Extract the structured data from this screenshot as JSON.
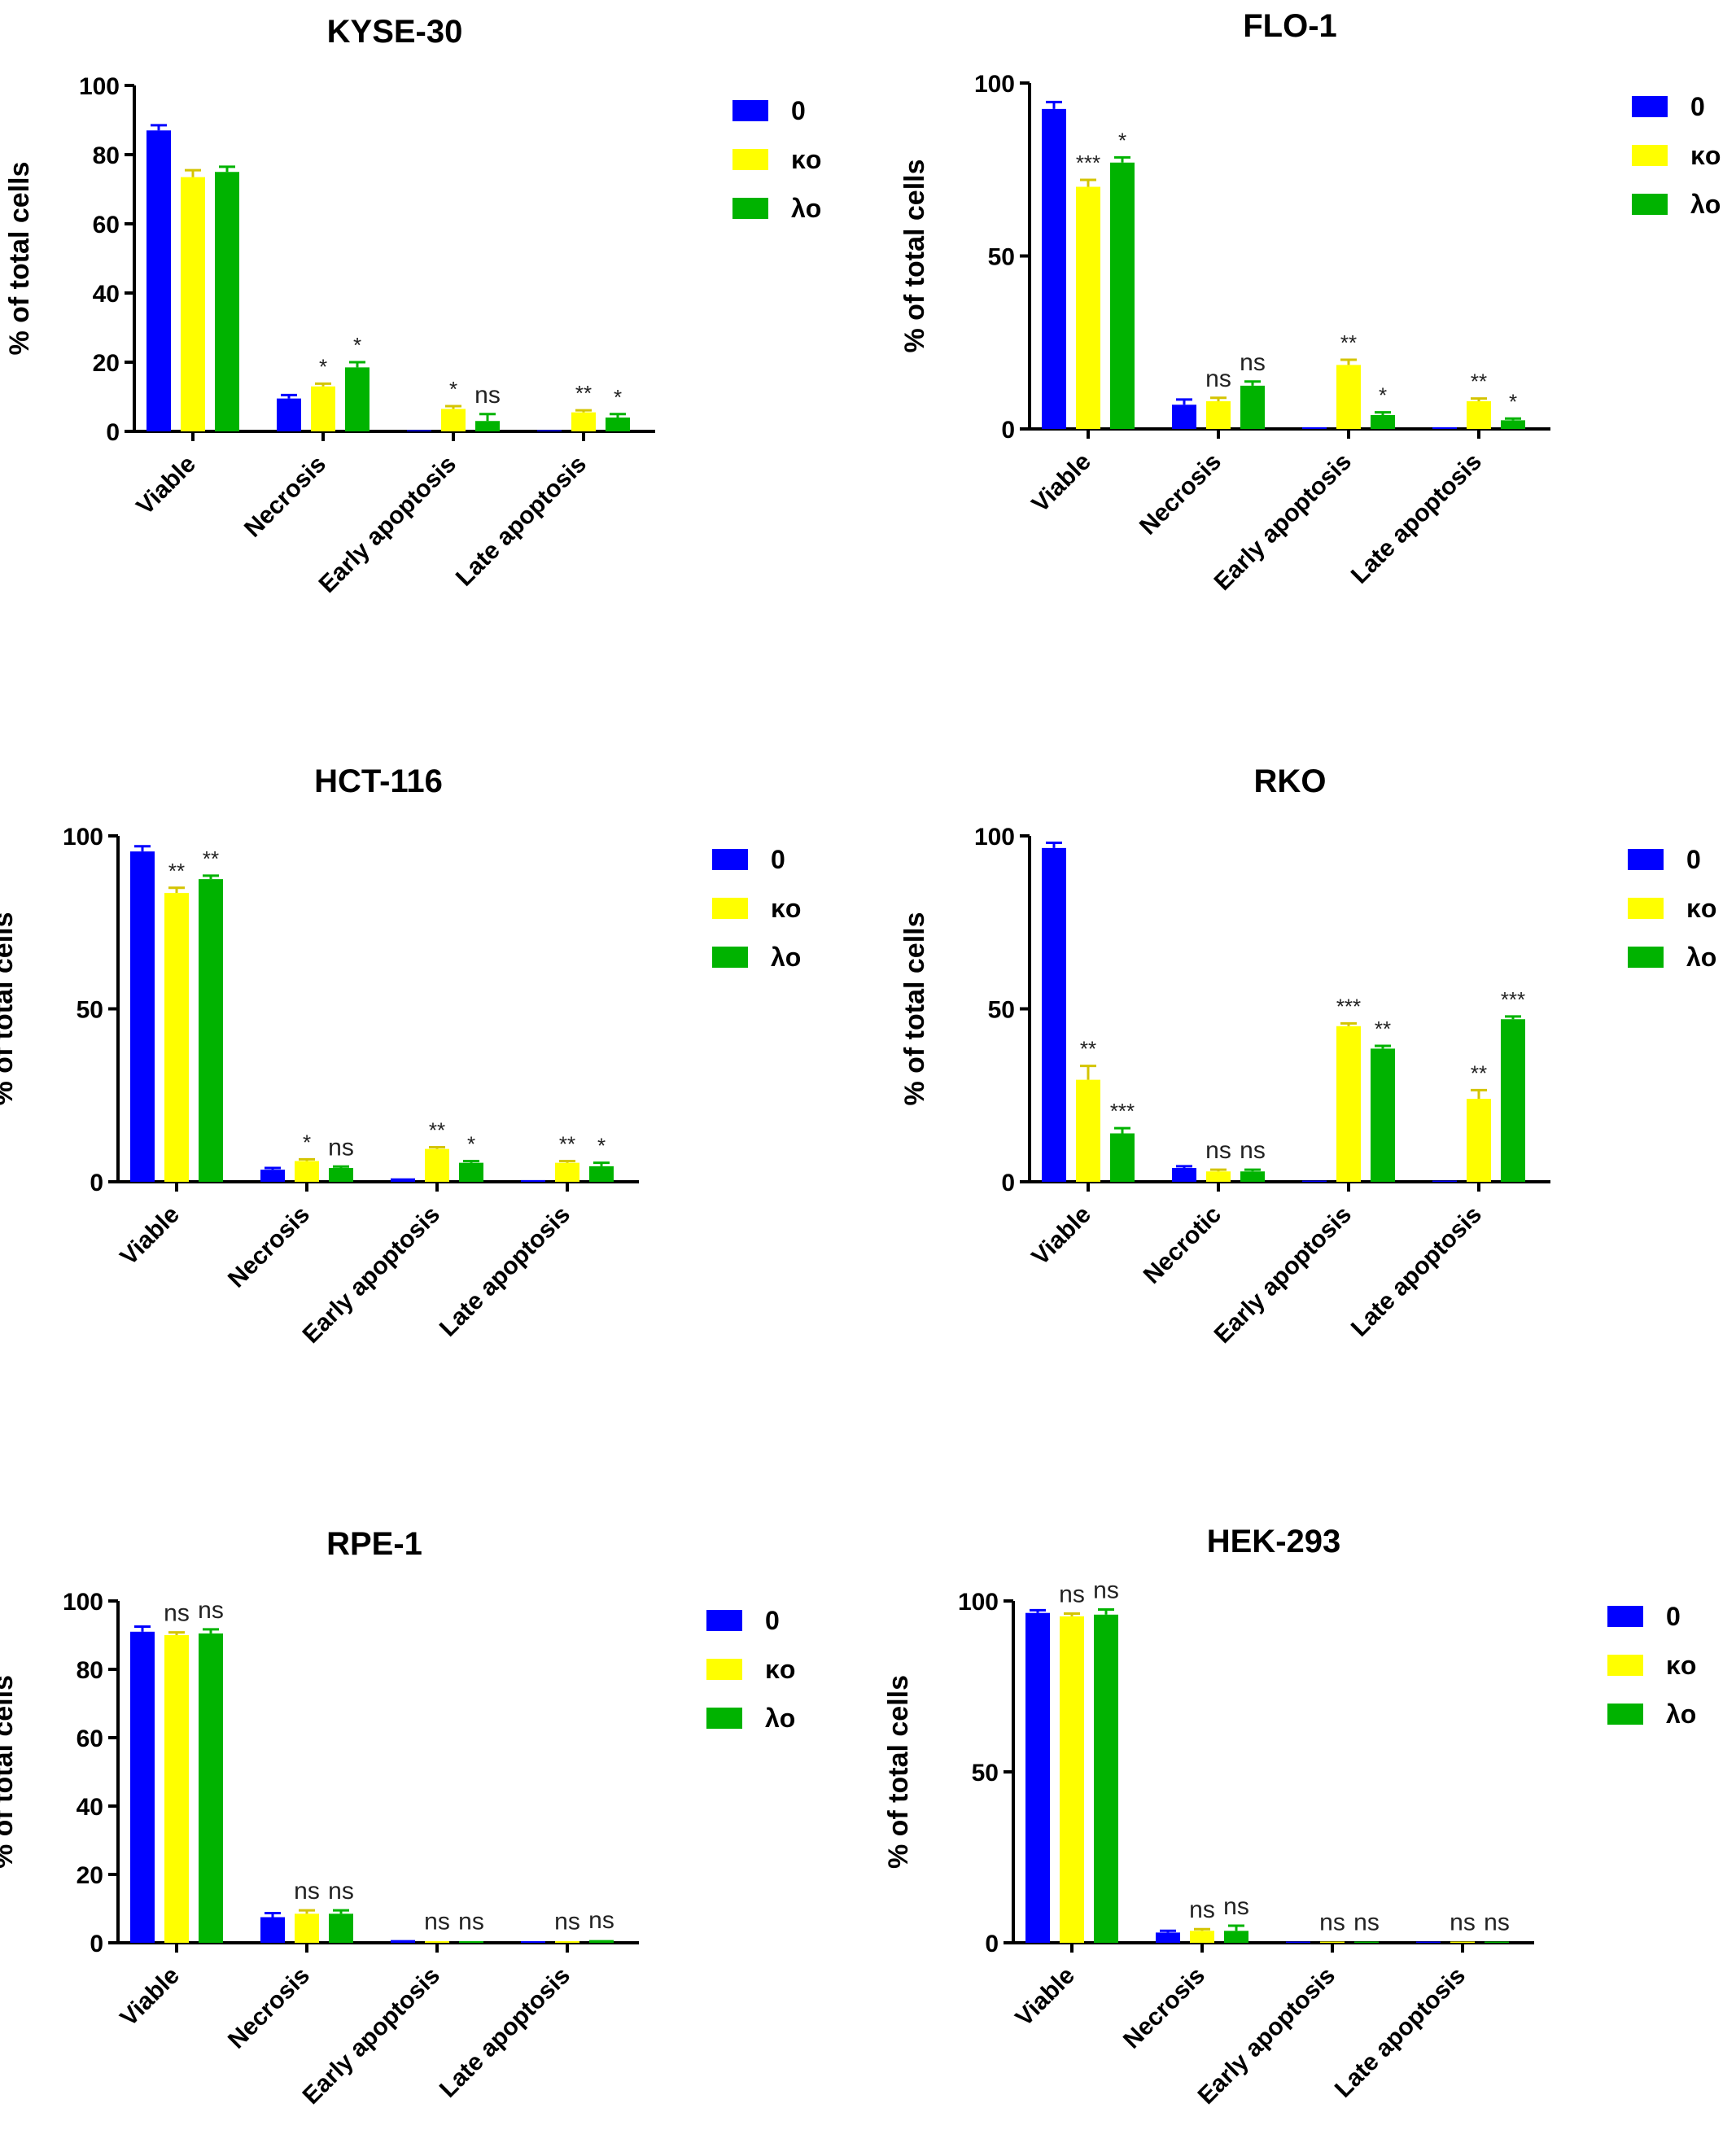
{
  "figure": {
    "legend_default": [
      {
        "label": "0",
        "color": "#0000ff"
      },
      {
        "label": "κo",
        "color": "#ffff00"
      },
      {
        "label": "λo",
        "color": "#00b300"
      }
    ]
  },
  "chart_data": [
    {
      "type": "bar",
      "title": "KYSE-30",
      "ylabel": "% of total cells",
      "xlabel": "",
      "ylim": [
        0,
        100
      ],
      "yticks": [
        0,
        20,
        40,
        60,
        80,
        100
      ],
      "categories": [
        "Viable",
        "Necrosis",
        "Early apoptosis",
        "Late apoptosis"
      ],
      "series": [
        {
          "name": "0",
          "color": "#0000ff",
          "values": [
            87,
            9.5,
            0.3,
            0.3
          ],
          "errors": [
            1.5,
            1,
            0.1,
            0.1
          ]
        },
        {
          "name": "κo",
          "color": "#ffff00",
          "values": [
            73.5,
            13,
            6.5,
            5.5
          ],
          "errors": [
            2,
            0.8,
            0.8,
            0.6
          ]
        },
        {
          "name": "λo",
          "color": "#00b300",
          "values": [
            75,
            18.5,
            3,
            4
          ],
          "errors": [
            1.5,
            1.5,
            2,
            1
          ]
        }
      ],
      "significance": [
        [
          "",
          "",
          ""
        ],
        [
          "",
          "*",
          "*"
        ],
        [
          "",
          "*",
          "ns"
        ],
        [
          "",
          "**",
          "*"
        ]
      ],
      "grid": false,
      "legend": "right"
    },
    {
      "type": "bar",
      "title": "FLO-1",
      "ylabel": "% of total cells",
      "xlabel": "",
      "ylim": [
        0,
        100
      ],
      "yticks": [
        0,
        50,
        100
      ],
      "categories": [
        "Viable",
        "Necrosis",
        "Early apoptosis",
        "Late apoptosis"
      ],
      "series": [
        {
          "name": "0",
          "color": "#0000ff",
          "values": [
            92.5,
            7,
            0.5,
            0.5
          ],
          "errors": [
            2,
            1.5,
            0.1,
            0.1
          ]
        },
        {
          "name": "κo",
          "color": "#ffff00",
          "values": [
            70,
            8,
            18.5,
            8
          ],
          "errors": [
            2,
            1,
            1.5,
            0.8
          ]
        },
        {
          "name": "λo",
          "color": "#00b300",
          "values": [
            77,
            12.5,
            4,
            2.5
          ],
          "errors": [
            1.5,
            1.2,
            0.8,
            0.5
          ]
        }
      ],
      "significance": [
        [
          "",
          "***",
          "*"
        ],
        [
          "",
          "ns",
          "ns"
        ],
        [
          "",
          "**",
          "*"
        ],
        [
          "",
          "**",
          "*"
        ]
      ],
      "grid": false,
      "legend": "right"
    },
    {
      "type": "bar",
      "title": "HCT-116",
      "ylabel": "% of total cells",
      "xlabel": "",
      "ylim": [
        0,
        100
      ],
      "yticks": [
        0,
        50,
        100
      ],
      "categories": [
        "Viable",
        "Necrosis",
        "Early apoptosis",
        "Late apoptosis"
      ],
      "series": [
        {
          "name": "0",
          "color": "#0000ff",
          "values": [
            95.5,
            3.5,
            1,
            0.5
          ],
          "errors": [
            1.5,
            0.5,
            0.3,
            0.1
          ]
        },
        {
          "name": "κo",
          "color": "#ffff00",
          "values": [
            83.5,
            6,
            9.5,
            5.5
          ],
          "errors": [
            1.5,
            0.5,
            0.5,
            0.5
          ]
        },
        {
          "name": "λo",
          "color": "#00b300",
          "values": [
            87.5,
            4,
            5.5,
            4.5
          ],
          "errors": [
            1,
            0.4,
            0.5,
            1
          ]
        }
      ],
      "significance": [
        [
          "",
          "**",
          "**"
        ],
        [
          "",
          "*",
          "ns"
        ],
        [
          "",
          "**",
          "*"
        ],
        [
          "",
          "**",
          "*"
        ]
      ],
      "grid": false,
      "legend": "right"
    },
    {
      "type": "bar",
      "title": "RKO",
      "ylabel": "% of total cells",
      "xlabel": "",
      "ylim": [
        0,
        100
      ],
      "yticks": [
        0,
        50,
        100
      ],
      "categories": [
        "Viable",
        "Necrotic",
        "Early apoptosis",
        "Late apoptosis"
      ],
      "series": [
        {
          "name": "0",
          "color": "#0000ff",
          "values": [
            96.5,
            4,
            0.3,
            0.3
          ],
          "errors": [
            1.5,
            0.5,
            0.1,
            0.1
          ]
        },
        {
          "name": "κo",
          "color": "#ffff00",
          "values": [
            29.5,
            3,
            45,
            24
          ],
          "errors": [
            4,
            0.5,
            0.8,
            2.5
          ]
        },
        {
          "name": "λo",
          "color": "#00b300",
          "values": [
            14,
            3,
            38.5,
            47
          ],
          "errors": [
            1.5,
            0.5,
            0.8,
            0.8
          ]
        }
      ],
      "significance": [
        [
          "",
          "**",
          "***"
        ],
        [
          "",
          "ns",
          "ns"
        ],
        [
          "",
          "***",
          "**"
        ],
        [
          "",
          "**",
          "***"
        ]
      ],
      "grid": false,
      "legend": "right"
    },
    {
      "type": "bar",
      "title": "RPE-1",
      "ylabel": "% of total cells",
      "xlabel": "",
      "ylim": [
        0,
        100
      ],
      "yticks": [
        0,
        20,
        40,
        60,
        80,
        100
      ],
      "categories": [
        "Viable",
        "Necrosis",
        "Early apoptosis",
        "Late apoptosis"
      ],
      "series": [
        {
          "name": "0",
          "color": "#0000ff",
          "values": [
            91,
            7.5,
            0.8,
            0.5
          ],
          "errors": [
            1.5,
            1.2,
            0.2,
            0.1
          ]
        },
        {
          "name": "κo",
          "color": "#ffff00",
          "values": [
            90,
            8.5,
            0.5,
            0.5
          ],
          "errors": [
            0.8,
            1,
            0.1,
            0.1
          ]
        },
        {
          "name": "λo",
          "color": "#00b300",
          "values": [
            90.5,
            8.5,
            0.5,
            0.8
          ],
          "errors": [
            1.2,
            1,
            0.1,
            0.2
          ]
        }
      ],
      "significance": [
        [
          "",
          "ns",
          "ns"
        ],
        [
          "",
          "ns",
          "ns"
        ],
        [
          "",
          "ns",
          "ns"
        ],
        [
          "",
          "ns",
          "ns"
        ]
      ],
      "grid": false,
      "legend": "right"
    },
    {
      "type": "bar",
      "title": "HEK-293",
      "ylabel": "% of total cells",
      "xlabel": "",
      "ylim": [
        0,
        100
      ],
      "yticks": [
        0,
        50,
        100
      ],
      "categories": [
        "Viable",
        "Necrosis",
        "Early apoptosis",
        "Late apoptosis"
      ],
      "series": [
        {
          "name": "0",
          "color": "#0000ff",
          "values": [
            96.5,
            3,
            0.3,
            0.3
          ],
          "errors": [
            0.8,
            0.5,
            0.1,
            0.1
          ]
        },
        {
          "name": "κo",
          "color": "#ffff00",
          "values": [
            95.5,
            3.5,
            0.3,
            0.3
          ],
          "errors": [
            0.8,
            0.5,
            0.1,
            0.1
          ]
        },
        {
          "name": "λo",
          "color": "#00b300",
          "values": [
            96,
            3.5,
            0.3,
            0.3
          ],
          "errors": [
            1.5,
            1.5,
            0.1,
            0.1
          ]
        }
      ],
      "significance": [
        [
          "",
          "ns",
          "ns"
        ],
        [
          "",
          "ns",
          "ns"
        ],
        [
          "",
          "ns",
          "ns"
        ],
        [
          "",
          "ns",
          "ns"
        ]
      ],
      "grid": false,
      "legend": "right"
    }
  ]
}
